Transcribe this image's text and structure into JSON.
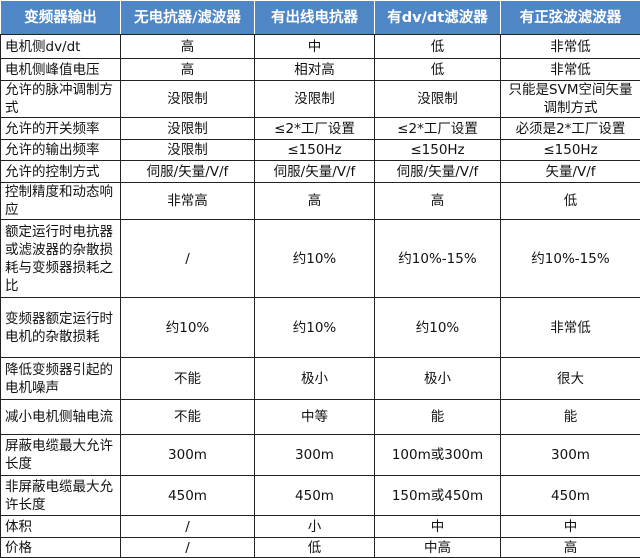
{
  "colors": {
    "header_bg": "#4f86c6",
    "header_text": "#ffffff",
    "border": "#222222"
  },
  "headers": [
    "变频器输出",
    "无电抗器/滤波器",
    "有出线电抗器",
    "有dv/dt滤波器",
    "有正弦波滤波器"
  ],
  "rows": [
    {
      "label": "电机侧dv/dt",
      "cells": [
        "高",
        "中",
        "低",
        "非常低"
      ]
    },
    {
      "label": "电机侧峰值电压",
      "cells": [
        "高",
        "相对高",
        "低",
        "非常低"
      ]
    },
    {
      "label": "允许的脉冲调制方式",
      "cells": [
        "没限制",
        "没限制",
        "没限制",
        "只能是SVM空间矢量调制方式"
      ]
    },
    {
      "label": "允许的开关频率",
      "cells": [
        "没限制",
        "≤2*工厂设置",
        "≤2*工厂设置",
        "必须是2*工厂设置"
      ]
    },
    {
      "label": "允许的输出频率",
      "cells": [
        "没限制",
        "≤150Hz",
        "≤150Hz",
        "≤150Hz"
      ]
    },
    {
      "label": "允许的控制方式",
      "cells": [
        "伺服/矢量/V/f",
        "伺服/矢量/V/f",
        "伺服/矢量/V/f",
        "矢量/V/f"
      ]
    },
    {
      "label": "控制精度和动态响应",
      "cells": [
        "非常高",
        "高",
        "高",
        "低"
      ]
    },
    {
      "label": "额定运行时电抗器或滤波器的杂散损耗与变频器损耗之比",
      "cells": [
        "/",
        "约10%",
        "约10%-15%",
        "约10%-15%"
      ]
    },
    {
      "label": "变频器额定运行时电机的杂散损耗",
      "cells": [
        "约10%",
        "约10%",
        "约10%",
        "非常低"
      ]
    },
    {
      "label": "降低变频器引起的电机噪声",
      "cells": [
        "不能",
        "极小",
        "极小",
        "很大"
      ]
    },
    {
      "label": "减小电机侧轴电流",
      "cells": [
        "不能",
        "中等",
        "能",
        "能"
      ]
    },
    {
      "label": "屏蔽电缆最大允许长度",
      "cells": [
        "300m",
        "300m",
        "100m或300m",
        "300m"
      ]
    },
    {
      "label": "非屏蔽电缆最大允许长度",
      "cells": [
        "450m",
        "450m",
        "150m或450m",
        "450m"
      ]
    },
    {
      "label": "体积",
      "cells": [
        "/",
        "小",
        "中",
        "中"
      ]
    },
    {
      "label": "价格",
      "cells": [
        "/",
        "低",
        "中高",
        "高"
      ]
    }
  ]
}
